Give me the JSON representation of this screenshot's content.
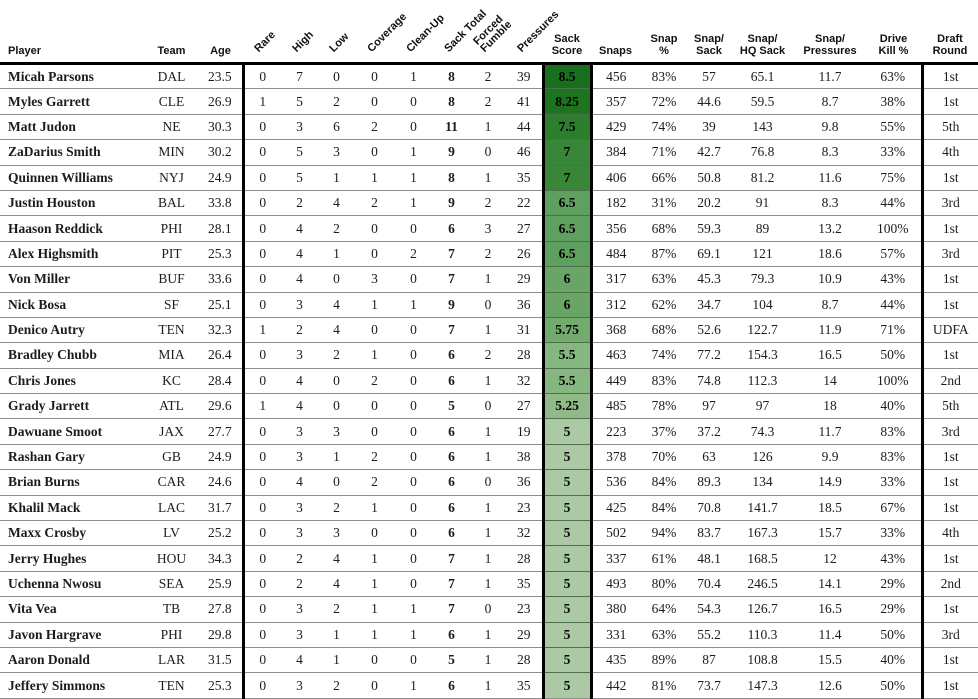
{
  "colors": {
    "header_rule": "#000000",
    "row_rule": "#8f8f8f",
    "score_scale": {
      "8.5": "#186f1d",
      "8.25": "#1d741f",
      "7.5": "#2b7e2b",
      "7": "#388637",
      "6.5": "#5f9f5f",
      "6": "#68a567",
      "5.75": "#73ab6e",
      "5.5": "#87b780",
      "5.25": "#90bb89",
      "5": "#abc9a5"
    }
  },
  "chart_data": {
    "type": "table",
    "columns": [
      {
        "key": "player",
        "label": "Player",
        "rotated": false
      },
      {
        "key": "team",
        "label": "Team",
        "rotated": false
      },
      {
        "key": "age",
        "label": "Age",
        "rotated": false
      },
      {
        "key": "rare",
        "label": "Rare",
        "rotated": true
      },
      {
        "key": "high",
        "label": "High",
        "rotated": true
      },
      {
        "key": "low",
        "label": "Low",
        "rotated": true
      },
      {
        "key": "coverage",
        "label": "Coverage",
        "rotated": true
      },
      {
        "key": "cleanup",
        "label": "Clean-Up",
        "rotated": true
      },
      {
        "key": "sack_total",
        "label": "Sack Total",
        "rotated": true
      },
      {
        "key": "forced_fumble",
        "label": "Forced\nFumble",
        "rotated": true
      },
      {
        "key": "pressures",
        "label": "Pressures",
        "rotated": true
      },
      {
        "key": "sack_score",
        "label": "Sack\nScore",
        "rotated": false
      },
      {
        "key": "snaps",
        "label": "Snaps",
        "rotated": false
      },
      {
        "key": "snap_pct",
        "label": "Snap\n%",
        "rotated": false
      },
      {
        "key": "snap_sack",
        "label": "Snap/\nSack",
        "rotated": false
      },
      {
        "key": "snap_hq_sack",
        "label": "Snap/\nHQ Sack",
        "rotated": false
      },
      {
        "key": "snap_pressures",
        "label": "Snap/\nPressures",
        "rotated": false
      },
      {
        "key": "drive_kill",
        "label": "Drive\nKill %",
        "rotated": false
      },
      {
        "key": "draft_round",
        "label": "Draft\nRound",
        "rotated": false
      }
    ],
    "rows": [
      [
        "Micah Parsons",
        "DAL",
        23.5,
        0,
        7,
        0,
        0,
        1,
        8,
        2,
        39,
        8.5,
        456,
        "83%",
        57,
        65.1,
        11.7,
        "63%",
        "1st"
      ],
      [
        "Myles Garrett",
        "CLE",
        26.9,
        1,
        5,
        2,
        0,
        0,
        8,
        2,
        41,
        8.25,
        357,
        "72%",
        44.6,
        59.5,
        8.7,
        "38%",
        "1st"
      ],
      [
        "Matt Judon",
        "NE",
        30.3,
        0,
        3,
        6,
        2,
        0,
        11,
        1,
        44,
        7.5,
        429,
        "74%",
        39,
        143,
        9.8,
        "55%",
        "5th"
      ],
      [
        "ZaDarius Smith",
        "MIN",
        30.2,
        0,
        5,
        3,
        0,
        1,
        9,
        0,
        46,
        7,
        384,
        "71%",
        42.7,
        76.8,
        8.3,
        "33%",
        "4th"
      ],
      [
        "Quinnen Williams",
        "NYJ",
        24.9,
        0,
        5,
        1,
        1,
        1,
        8,
        1,
        35,
        7,
        406,
        "66%",
        50.8,
        81.2,
        11.6,
        "75%",
        "1st"
      ],
      [
        "Justin Houston",
        "BAL",
        33.8,
        0,
        2,
        4,
        2,
        1,
        9,
        2,
        22,
        6.5,
        182,
        "31%",
        20.2,
        91,
        8.3,
        "44%",
        "3rd"
      ],
      [
        "Haason Reddick",
        "PHI",
        28.1,
        0,
        4,
        2,
        0,
        0,
        6,
        3,
        27,
        6.5,
        356,
        "68%",
        59.3,
        89,
        13.2,
        "100%",
        "1st"
      ],
      [
        "Alex Highsmith",
        "PIT",
        25.3,
        0,
        4,
        1,
        0,
        2,
        7,
        2,
        26,
        6.5,
        484,
        "87%",
        69.1,
        121,
        18.6,
        "57%",
        "3rd"
      ],
      [
        "Von Miller",
        "BUF",
        33.6,
        0,
        4,
        0,
        3,
        0,
        7,
        1,
        29,
        6,
        317,
        "63%",
        45.3,
        79.3,
        10.9,
        "43%",
        "1st"
      ],
      [
        "Nick Bosa",
        "SF",
        25.1,
        0,
        3,
        4,
        1,
        1,
        9,
        0,
        36,
        6,
        312,
        "62%",
        34.7,
        104,
        8.7,
        "44%",
        "1st"
      ],
      [
        "Denico Autry",
        "TEN",
        32.3,
        1,
        2,
        4,
        0,
        0,
        7,
        1,
        31,
        5.75,
        368,
        "68%",
        52.6,
        122.7,
        11.9,
        "71%",
        "UDFA"
      ],
      [
        "Bradley Chubb",
        "MIA",
        26.4,
        0,
        3,
        2,
        1,
        0,
        6,
        2,
        28,
        5.5,
        463,
        "74%",
        77.2,
        154.3,
        16.5,
        "50%",
        "1st"
      ],
      [
        "Chris Jones",
        "KC",
        28.4,
        0,
        4,
        0,
        2,
        0,
        6,
        1,
        32,
        5.5,
        449,
        "83%",
        74.8,
        112.3,
        14,
        "100%",
        "2nd"
      ],
      [
        "Grady Jarrett",
        "ATL",
        29.6,
        1,
        4,
        0,
        0,
        0,
        5,
        0,
        27,
        5.25,
        485,
        "78%",
        97,
        97,
        18,
        "40%",
        "5th"
      ],
      [
        "Dawuane Smoot",
        "JAX",
        27.7,
        0,
        3,
        3,
        0,
        0,
        6,
        1,
        19,
        5,
        223,
        "37%",
        37.2,
        74.3,
        11.7,
        "83%",
        "3rd"
      ],
      [
        "Rashan Gary",
        "GB",
        24.9,
        0,
        3,
        1,
        2,
        0,
        6,
        1,
        38,
        5,
        378,
        "70%",
        63,
        126,
        9.9,
        "83%",
        "1st"
      ],
      [
        "Brian Burns",
        "CAR",
        24.6,
        0,
        4,
        0,
        2,
        0,
        6,
        0,
        36,
        5,
        536,
        "84%",
        89.3,
        134,
        14.9,
        "33%",
        "1st"
      ],
      [
        "Khalil Mack",
        "LAC",
        31.7,
        0,
        3,
        2,
        1,
        0,
        6,
        1,
        23,
        5,
        425,
        "84%",
        70.8,
        141.7,
        18.5,
        "67%",
        "1st"
      ],
      [
        "Maxx Crosby",
        "LV",
        25.2,
        0,
        3,
        3,
        0,
        0,
        6,
        1,
        32,
        5,
        502,
        "94%",
        83.7,
        167.3,
        15.7,
        "33%",
        "4th"
      ],
      [
        "Jerry Hughes",
        "HOU",
        34.3,
        0,
        2,
        4,
        1,
        0,
        7,
        1,
        28,
        5,
        337,
        "61%",
        48.1,
        168.5,
        12,
        "43%",
        "1st"
      ],
      [
        "Uchenna Nwosu",
        "SEA",
        25.9,
        0,
        2,
        4,
        1,
        0,
        7,
        1,
        35,
        5,
        493,
        "80%",
        70.4,
        246.5,
        14.1,
        "29%",
        "2nd"
      ],
      [
        "Vita Vea",
        "TB",
        27.8,
        0,
        3,
        2,
        1,
        1,
        7,
        0,
        23,
        5,
        380,
        "64%",
        54.3,
        126.7,
        16.5,
        "29%",
        "1st"
      ],
      [
        "Javon Hargrave",
        "PHI",
        29.8,
        0,
        3,
        1,
        1,
        1,
        6,
        1,
        29,
        5,
        331,
        "63%",
        55.2,
        110.3,
        11.4,
        "50%",
        "3rd"
      ],
      [
        "Aaron Donald",
        "LAR",
        31.5,
        0,
        4,
        1,
        0,
        0,
        5,
        1,
        28,
        5,
        435,
        "89%",
        87,
        108.8,
        15.5,
        "40%",
        "1st"
      ],
      [
        "Jeffery Simmons",
        "TEN",
        25.3,
        0,
        3,
        2,
        0,
        1,
        6,
        1,
        35,
        5,
        442,
        "81%",
        73.7,
        147.3,
        12.6,
        "50%",
        "1st"
      ]
    ]
  }
}
